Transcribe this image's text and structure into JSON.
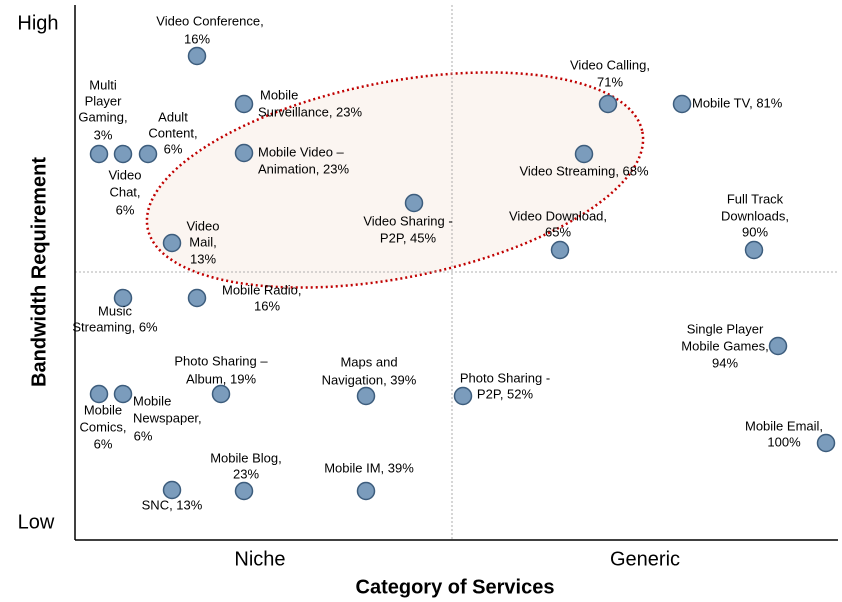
{
  "axes": {
    "y_high": "High",
    "y_low": "Low",
    "y_title": "Bandwidth Requirement",
    "x_left": "Niche",
    "x_right": "Generic",
    "x_title": "Category of Services"
  },
  "points": [
    {
      "lines": [
        "Video Conference,",
        "16%"
      ]
    },
    {
      "lines": [
        "Multi",
        "Player",
        "Gaming,",
        "3%"
      ]
    },
    {
      "lines": [
        "Video",
        "Chat,",
        "6%"
      ]
    },
    {
      "lines": [
        "Adult",
        "Content,",
        "6%"
      ]
    },
    {
      "lines": [
        "Mobile",
        "Surveillance, 23%"
      ]
    },
    {
      "lines": [
        "Mobile Video –",
        "Animation, 23%"
      ]
    },
    {
      "lines": [
        "Video",
        "Mail,",
        "13%"
      ]
    },
    {
      "lines": [
        "Video Sharing -",
        "P2P, 45%"
      ]
    },
    {
      "lines": [
        "Video Calling,",
        "71%"
      ]
    },
    {
      "lines": [
        "Mobile TV, 81%"
      ]
    },
    {
      "lines": [
        "Video Streaming, 68%"
      ]
    },
    {
      "lines": [
        "Video Download,",
        "65%"
      ]
    },
    {
      "lines": [
        "Full Track",
        "Downloads,",
        "90%"
      ]
    },
    {
      "lines": [
        "Music",
        "Streaming, 6%"
      ]
    },
    {
      "lines": [
        "Mobile Radio,",
        "16%"
      ]
    },
    {
      "lines": [
        "Single Player",
        "Mobile Games,",
        "94%"
      ]
    },
    {
      "lines": [
        "Photo Sharing –",
        "Album, 19%"
      ]
    },
    {
      "lines": [
        "Maps and",
        "Navigation, 39%"
      ]
    },
    {
      "lines": [
        "Photo Sharing -",
        "P2P, 52%"
      ]
    },
    {
      "lines": [
        "Mobile",
        "Comics,",
        "6%"
      ]
    },
    {
      "lines": [
        "Mobile",
        "Newspaper,",
        "6%"
      ]
    },
    {
      "lines": [
        "Mobile Email,",
        "100%"
      ]
    },
    {
      "lines": [
        "Mobile Blog,",
        "23%"
      ]
    },
    {
      "lines": [
        "Mobile IM, 39%"
      ]
    },
    {
      "lines": [
        "SNC, 13%"
      ]
    }
  ]
}
